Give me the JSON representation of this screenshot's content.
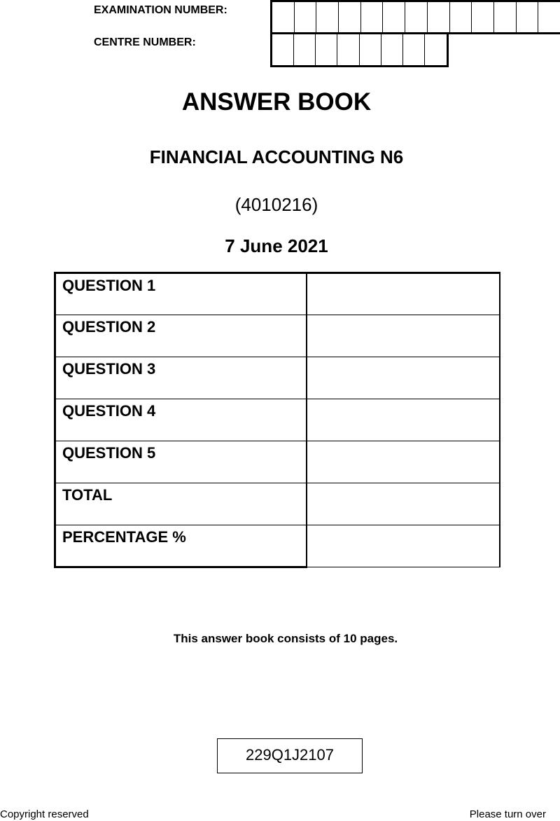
{
  "header": {
    "examination_number_label": "EXAMINATION NUMBER:",
    "examination_number_boxes": 13,
    "centre_number_label": "CENTRE NUMBER:",
    "centre_number_boxes": 8
  },
  "title": "ANSWER BOOK",
  "subject": "FINANCIAL ACCOUNTING N6",
  "subject_code": "(4010216)",
  "date": "7 June 2021",
  "marks_table": {
    "rows": [
      "QUESTION 1",
      "QUESTION 2",
      "QUESTION 3",
      "QUESTION 4",
      "QUESTION 5",
      "TOTAL",
      "PERCENTAGE %"
    ]
  },
  "pages_note": "This answer book consists of 10 pages.",
  "paper_code": "229Q1J2107",
  "footer": {
    "left": "Copyright reserved",
    "right": "Please turn over"
  }
}
